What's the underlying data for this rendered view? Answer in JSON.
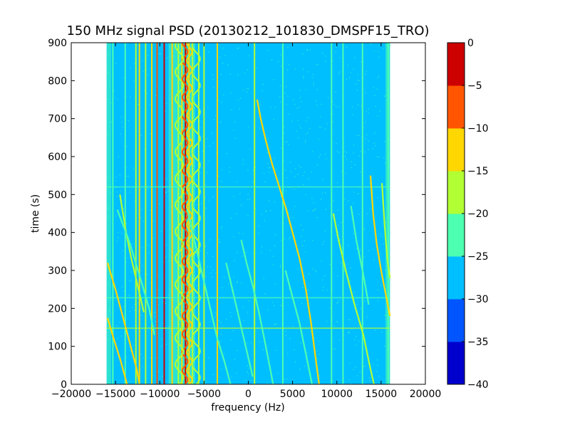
{
  "chart_data": {
    "type": "heatmap",
    "title": "150 MHz signal PSD (20130212_101830_DMSPF15_TRO)",
    "xlabel": "frequency (Hz)",
    "ylabel": "time (s)",
    "xlim": [
      -20000,
      20000
    ],
    "ylim": [
      0,
      900
    ],
    "x_ticks": [
      -20000,
      -15000,
      -10000,
      -5000,
      0,
      5000,
      10000,
      15000,
      20000
    ],
    "x_tick_labels": [
      "−20000",
      "−15000",
      "−10000",
      "−5000",
      "0",
      "5000",
      "10000",
      "15000",
      "20000"
    ],
    "y_ticks": [
      0,
      100,
      200,
      300,
      400,
      500,
      600,
      700,
      800,
      900
    ],
    "y_tick_labels": [
      "0",
      "100",
      "200",
      "300",
      "400",
      "500",
      "600",
      "700",
      "800",
      "900"
    ],
    "data_extent_x": [
      -16000,
      16000
    ],
    "background_level": -27.5,
    "colorbar": {
      "levels": [
        -40,
        -35,
        -30,
        -25,
        -20,
        -15,
        -10,
        -5,
        0
      ],
      "tick_labels": [
        "−40",
        "−35",
        "−30",
        "−25",
        "−20",
        "−15",
        "−10",
        "−5",
        "0"
      ],
      "colors": [
        "#0000cd",
        "#0055ff",
        "#00bfff",
        "#4dffb0",
        "#b2ff33",
        "#ffd700",
        "#ff5500",
        "#cd0000"
      ]
    },
    "constant_lines": [
      {
        "freq": -15300,
        "level": -22.5
      },
      {
        "freq": -13900,
        "level": -22.5
      },
      {
        "freq": -12700,
        "level": -17.5
      },
      {
        "freq": -12300,
        "level": -12.5
      },
      {
        "freq": -11600,
        "level": -17.5
      },
      {
        "freq": -10900,
        "level": -12.5
      },
      {
        "freq": -10300,
        "level": -7.5
      },
      {
        "freq": -9500,
        "level": -2.5
      },
      {
        "freq": -8600,
        "level": -12.5
      },
      {
        "freq": -7900,
        "level": -17.5
      },
      {
        "freq": -7500,
        "level": -12.5
      },
      {
        "freq": -7100,
        "level": -2.5
      },
      {
        "freq": -6700,
        "level": -12.5
      },
      {
        "freq": -6300,
        "level": -17.5
      },
      {
        "freq": -5600,
        "level": -17.5
      },
      {
        "freq": -5000,
        "level": -17.5
      },
      {
        "freq": -3500,
        "level": -12.5
      },
      {
        "freq": 700,
        "level": -17.5
      },
      {
        "freq": 3900,
        "level": -22.5
      },
      {
        "freq": 9400,
        "level": -22.5
      },
      {
        "freq": 10700,
        "level": -22.5
      },
      {
        "freq": 12900,
        "level": -22.5
      },
      {
        "freq": 15800,
        "level": -22.5
      }
    ],
    "constant_bands": [
      {
        "from": -16000,
        "to": -15500,
        "level": -22.5
      },
      {
        "from": 15500,
        "to": 16000,
        "level": -22.5
      },
      {
        "from": -9000,
        "to": -6000,
        "level": -22.5
      }
    ],
    "horizontal_lines": [
      {
        "time": 148,
        "level": -17.5
      },
      {
        "time": 228,
        "level": -22.5
      },
      {
        "time": 520,
        "level": -22.5
      }
    ],
    "doppler_traces": [
      {
        "points": [
          [
            1000,
            750
          ],
          [
            1400,
            700
          ],
          [
            2000,
            640
          ],
          [
            2700,
            580
          ],
          [
            3500,
            520
          ],
          [
            4300,
            460
          ],
          [
            5000,
            400
          ],
          [
            5800,
            330
          ],
          [
            6500,
            250
          ],
          [
            7100,
            160
          ],
          [
            7600,
            70
          ],
          [
            8000,
            0
          ]
        ],
        "level": -12.5
      },
      {
        "points": [
          [
            -15900,
            320
          ],
          [
            -15000,
            250
          ],
          [
            -14200,
            180
          ],
          [
            -13400,
            110
          ],
          [
            -12600,
            40
          ],
          [
            -12300,
            0
          ]
        ],
        "level": -12.5
      },
      {
        "points": [
          [
            -15900,
            175
          ],
          [
            -15200,
            120
          ],
          [
            -14400,
            60
          ],
          [
            -13700,
            0
          ]
        ],
        "level": -12.5
      },
      {
        "points": [
          [
            -14500,
            500
          ],
          [
            -13800,
            400
          ],
          [
            -13200,
            330
          ],
          [
            -12500,
            260
          ],
          [
            -11800,
            190
          ]
        ],
        "level": -17.5
      },
      {
        "points": [
          [
            13800,
            550
          ],
          [
            14100,
            450
          ],
          [
            14500,
            370
          ],
          [
            15000,
            300
          ],
          [
            15500,
            240
          ],
          [
            16000,
            180
          ]
        ],
        "level": -12.5
      },
      {
        "points": [
          [
            15100,
            530
          ],
          [
            15400,
            420
          ],
          [
            15700,
            330
          ],
          [
            16000,
            280
          ]
        ],
        "level": -17.5
      },
      {
        "points": [
          [
            9600,
            450
          ],
          [
            10200,
            380
          ],
          [
            11000,
            300
          ],
          [
            12000,
            210
          ],
          [
            13000,
            130
          ],
          [
            13800,
            40
          ],
          [
            14200,
            0
          ]
        ],
        "level": -17.5
      },
      {
        "points": [
          [
            11600,
            470
          ],
          [
            12200,
            380
          ],
          [
            12900,
            300
          ],
          [
            13600,
            210
          ]
        ],
        "level": -22.5
      },
      {
        "points": [
          [
            -6900,
            460
          ],
          [
            -6200,
            390
          ],
          [
            -5500,
            320
          ],
          [
            -4800,
            250
          ],
          [
            -4100,
            180
          ],
          [
            -3500,
            120
          ],
          [
            -2700,
            60
          ],
          [
            -2000,
            0
          ]
        ],
        "level": -22.5
      },
      {
        "points": [
          [
            -800,
            380
          ],
          [
            -200,
            320
          ],
          [
            500,
            260
          ],
          [
            1200,
            190
          ],
          [
            1800,
            120
          ],
          [
            2400,
            50
          ],
          [
            2800,
            0
          ]
        ],
        "level": -22.5
      },
      {
        "points": [
          [
            -2500,
            320
          ],
          [
            -1700,
            240
          ],
          [
            -1000,
            170
          ],
          [
            -300,
            100
          ],
          [
            500,
            20
          ]
        ],
        "level": -22.5
      },
      {
        "points": [
          [
            4200,
            300
          ],
          [
            5000,
            230
          ],
          [
            5800,
            160
          ],
          [
            6500,
            80
          ],
          [
            7200,
            0
          ]
        ],
        "level": -22.5
      },
      {
        "points": [
          [
            -14800,
            460
          ],
          [
            -13500,
            380
          ],
          [
            -12200,
            280
          ],
          [
            -11200,
            200
          ],
          [
            -10600,
            130
          ]
        ],
        "level": -22.5
      }
    ],
    "wavy_traces": [
      {
        "center": -7150,
        "amplitude": 300,
        "period": 48,
        "level": -7.5
      },
      {
        "center": -6650,
        "amplitude": 300,
        "period": 48,
        "level": -12.5
      },
      {
        "center": -7800,
        "amplitude": 450,
        "period": 70,
        "level": -17.5
      },
      {
        "center": -5900,
        "amplitude": 450,
        "period": 70,
        "level": -17.5
      }
    ]
  }
}
